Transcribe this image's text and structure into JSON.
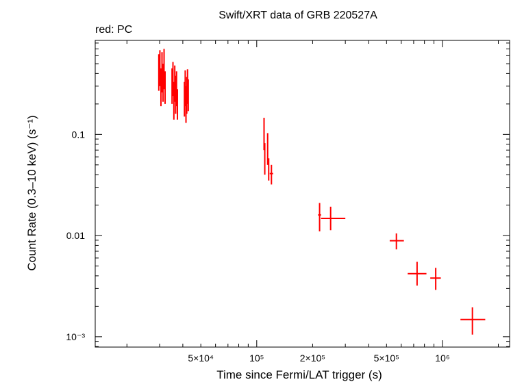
{
  "chart_data": {
    "type": "scatter",
    "title": "Swift/XRT data of GRB 220527A",
    "subtitle": "red: PC",
    "xlabel": "Time since Fermi/LAT trigger (s)",
    "ylabel": "Count Rate (0.3–10 keV) (s⁻¹)",
    "xscale": "log",
    "yscale": "log",
    "xlim": [
      13500,
      2300000
    ],
    "ylim": [
      0.00079,
      0.85
    ],
    "x_ticks": [
      {
        "value": 50000,
        "label": "5×10⁴"
      },
      {
        "value": 100000,
        "label": "10⁵"
      },
      {
        "value": 200000,
        "label": "2×10⁵"
      },
      {
        "value": 500000,
        "label": "5×10⁵"
      },
      {
        "value": 1000000,
        "label": "10⁶"
      }
    ],
    "y_ticks": [
      {
        "value": 0.1,
        "label": "0.1"
      },
      {
        "value": 0.01,
        "label": "0.01"
      },
      {
        "value": 0.001,
        "label": "10⁻³"
      }
    ],
    "color": "#ff0000",
    "series": [
      {
        "name": "PC",
        "points": [
          {
            "x": 29700,
            "xlo": 29500,
            "xhi": 29900,
            "y": 0.38,
            "ylo": 0.27,
            "yhi": 0.62
          },
          {
            "x": 30100,
            "xlo": 29950,
            "xhi": 30250,
            "y": 0.45,
            "ylo": 0.3,
            "yhi": 0.68
          },
          {
            "x": 30500,
            "xlo": 30350,
            "xhi": 30650,
            "y": 0.3,
            "ylo": 0.19,
            "yhi": 0.45
          },
          {
            "x": 30900,
            "xlo": 30750,
            "xhi": 31050,
            "y": 0.41,
            "ylo": 0.26,
            "yhi": 0.65
          },
          {
            "x": 31300,
            "xlo": 31150,
            "xhi": 31450,
            "y": 0.33,
            "ylo": 0.21,
            "yhi": 0.5
          },
          {
            "x": 31700,
            "xlo": 31550,
            "xhi": 31850,
            "y": 0.44,
            "ylo": 0.28,
            "yhi": 0.7
          },
          {
            "x": 32100,
            "xlo": 31950,
            "xhi": 32250,
            "y": 0.29,
            "ylo": 0.2,
            "yhi": 0.42
          },
          {
            "x": 35000,
            "xlo": 34850,
            "xhi": 35150,
            "y": 0.3,
            "ylo": 0.2,
            "yhi": 0.45
          },
          {
            "x": 35400,
            "xlo": 35250,
            "xhi": 35550,
            "y": 0.36,
            "ylo": 0.24,
            "yhi": 0.52
          },
          {
            "x": 35800,
            "xlo": 35650,
            "xhi": 35950,
            "y": 0.22,
            "ylo": 0.14,
            "yhi": 0.33
          },
          {
            "x": 36200,
            "xlo": 36050,
            "xhi": 36350,
            "y": 0.33,
            "ylo": 0.21,
            "yhi": 0.48
          },
          {
            "x": 36600,
            "xlo": 36450,
            "xhi": 36750,
            "y": 0.25,
            "ylo": 0.16,
            "yhi": 0.38
          },
          {
            "x": 37000,
            "xlo": 36850,
            "xhi": 37150,
            "y": 0.29,
            "ylo": 0.19,
            "yhi": 0.42
          },
          {
            "x": 37400,
            "xlo": 37250,
            "xhi": 37550,
            "y": 0.2,
            "ylo": 0.14,
            "yhi": 0.28
          },
          {
            "x": 40800,
            "xlo": 40650,
            "xhi": 40950,
            "y": 0.22,
            "ylo": 0.15,
            "yhi": 0.33
          },
          {
            "x": 41200,
            "xlo": 41050,
            "xhi": 41350,
            "y": 0.29,
            "ylo": 0.19,
            "yhi": 0.43
          },
          {
            "x": 41600,
            "xlo": 41450,
            "xhi": 41750,
            "y": 0.2,
            "ylo": 0.13,
            "yhi": 0.3
          },
          {
            "x": 42000,
            "xlo": 41850,
            "xhi": 42150,
            "y": 0.25,
            "ylo": 0.16,
            "yhi": 0.37
          },
          {
            "x": 42400,
            "xlo": 42250,
            "xhi": 42550,
            "y": 0.3,
            "ylo": 0.2,
            "yhi": 0.44
          },
          {
            "x": 42800,
            "xlo": 42650,
            "xhi": 42950,
            "y": 0.24,
            "ylo": 0.17,
            "yhi": 0.35
          },
          {
            "x": 109500,
            "xlo": 109000,
            "xhi": 110000,
            "y": 0.102,
            "ylo": 0.07,
            "yhi": 0.146
          },
          {
            "x": 110500,
            "xlo": 110000,
            "xhi": 111000,
            "y": 0.058,
            "ylo": 0.04,
            "yhi": 0.082
          },
          {
            "x": 114500,
            "xlo": 114000,
            "xhi": 115000,
            "y": 0.073,
            "ylo": 0.05,
            "yhi": 0.103
          },
          {
            "x": 116000,
            "xlo": 115500,
            "xhi": 116500,
            "y": 0.046,
            "ylo": 0.035,
            "yhi": 0.058
          },
          {
            "x": 120000,
            "xlo": 117500,
            "xhi": 122500,
            "y": 0.041,
            "ylo": 0.032,
            "yhi": 0.05
          },
          {
            "x": 218000,
            "xlo": 214000,
            "xhi": 222000,
            "y": 0.016,
            "ylo": 0.011,
            "yhi": 0.021
          },
          {
            "x": 250000,
            "xlo": 222000,
            "xhi": 300000,
            "y": 0.0148,
            "ylo": 0.0113,
            "yhi": 0.0193
          },
          {
            "x": 565000,
            "xlo": 520000,
            "xhi": 620000,
            "y": 0.0089,
            "ylo": 0.0073,
            "yhi": 0.0105
          },
          {
            "x": 730000,
            "xlo": 650000,
            "xhi": 820000,
            "y": 0.0042,
            "ylo": 0.0032,
            "yhi": 0.0055
          },
          {
            "x": 920000,
            "xlo": 860000,
            "xhi": 980000,
            "y": 0.0038,
            "ylo": 0.0029,
            "yhi": 0.0048
          },
          {
            "x": 1450000,
            "xlo": 1250000,
            "xhi": 1700000,
            "y": 0.00148,
            "ylo": 0.00105,
            "yhi": 0.00195
          }
        ]
      }
    ]
  }
}
